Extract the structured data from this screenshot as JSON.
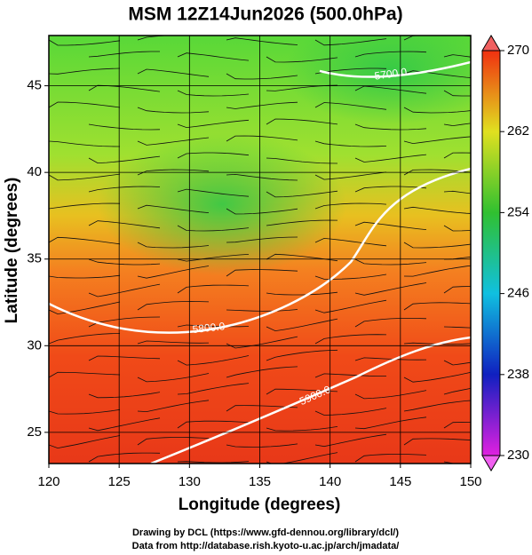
{
  "chart_data": {
    "type": "map",
    "title": "MSM 12Z14Jun2026 (500.0hPa)",
    "x_label": "Longitude (degrees)",
    "y_label": "Latitude  (degrees)",
    "xlim": [
      120,
      150
    ],
    "xticks": [
      120,
      125,
      130,
      135,
      140,
      145,
      150
    ],
    "ylim": [
      23.2,
      47.9
    ],
    "yticks": [
      25,
      30,
      35,
      40,
      45
    ],
    "grid": true,
    "colorbar": {
      "lim": [
        230,
        270
      ],
      "ticks": [
        230,
        238,
        246,
        254,
        262,
        270
      ],
      "colors": [
        "#e020e0",
        "#1020c0",
        "#10c0e0",
        "#30c030",
        "#e0e020",
        "#f03010"
      ]
    },
    "contour_labels": [
      "5700.0",
      "5800.0",
      "5900.0"
    ]
  },
  "credits": [
    "Drawing by DCL (https://www.gfd-dennou.org/library/dcl/)",
    "Data from http://database.rish.kyoto-u.ac.jp/arch/jmadata/"
  ]
}
